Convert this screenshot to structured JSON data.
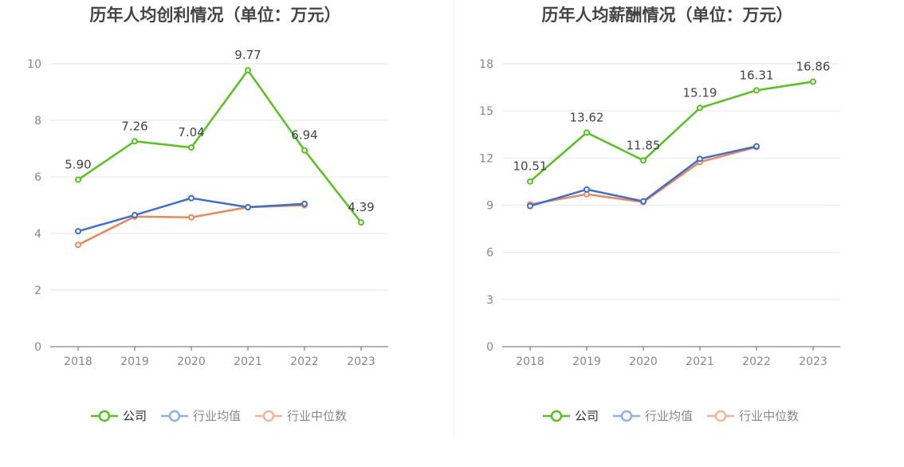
{
  "colors": {
    "company": "#52c41a",
    "industry_avg": "#3a6fd6",
    "industry_median": "#ef8656",
    "legend_avg": "#8fb0f0",
    "legend_median": "#f8b49a",
    "grid": "#e6e6ee",
    "axis": "#666666",
    "tick_text": "#888888",
    "title": "#444444",
    "label": "#444444"
  },
  "chart_data": [
    {
      "type": "line",
      "title": "历年人均创利情况（单位：万元）",
      "categories": [
        "2018",
        "2019",
        "2020",
        "2021",
        "2022",
        "2023"
      ],
      "ylim": [
        0,
        10
      ],
      "yticks": [
        0,
        2,
        4,
        6,
        8,
        10
      ],
      "grid": true,
      "legend_position": "bottom",
      "series": [
        {
          "name": "公司",
          "values": [
            5.9,
            7.26,
            7.04,
            9.77,
            6.94,
            4.39
          ],
          "labels": [
            "5.90",
            "7.26",
            "7.04",
            "9.77",
            "6.94",
            "4.39"
          ]
        },
        {
          "name": "行业均值",
          "values": [
            4.08,
            4.65,
            5.25,
            4.93,
            5.05,
            null
          ]
        },
        {
          "name": "行业中位数",
          "values": [
            3.6,
            4.6,
            4.57,
            4.93,
            5.0,
            null
          ]
        }
      ]
    },
    {
      "type": "line",
      "title": "历年人均薪酬情况（单位：万元）",
      "categories": [
        "2018",
        "2019",
        "2020",
        "2021",
        "2022",
        "2023"
      ],
      "ylim": [
        0,
        18
      ],
      "yticks": [
        0,
        3,
        6,
        9,
        12,
        15,
        18
      ],
      "grid": true,
      "legend_position": "bottom",
      "series": [
        {
          "name": "公司",
          "values": [
            10.51,
            13.62,
            11.85,
            15.19,
            16.31,
            16.86
          ],
          "labels": [
            "10.51",
            "13.62",
            "11.85",
            "15.19",
            "16.31",
            "16.86"
          ]
        },
        {
          "name": "行业均值",
          "values": [
            8.95,
            10.0,
            9.25,
            11.95,
            12.75,
            null
          ]
        },
        {
          "name": "行业中位数",
          "values": [
            9.05,
            9.7,
            9.2,
            11.75,
            12.7,
            null
          ]
        }
      ]
    }
  ]
}
